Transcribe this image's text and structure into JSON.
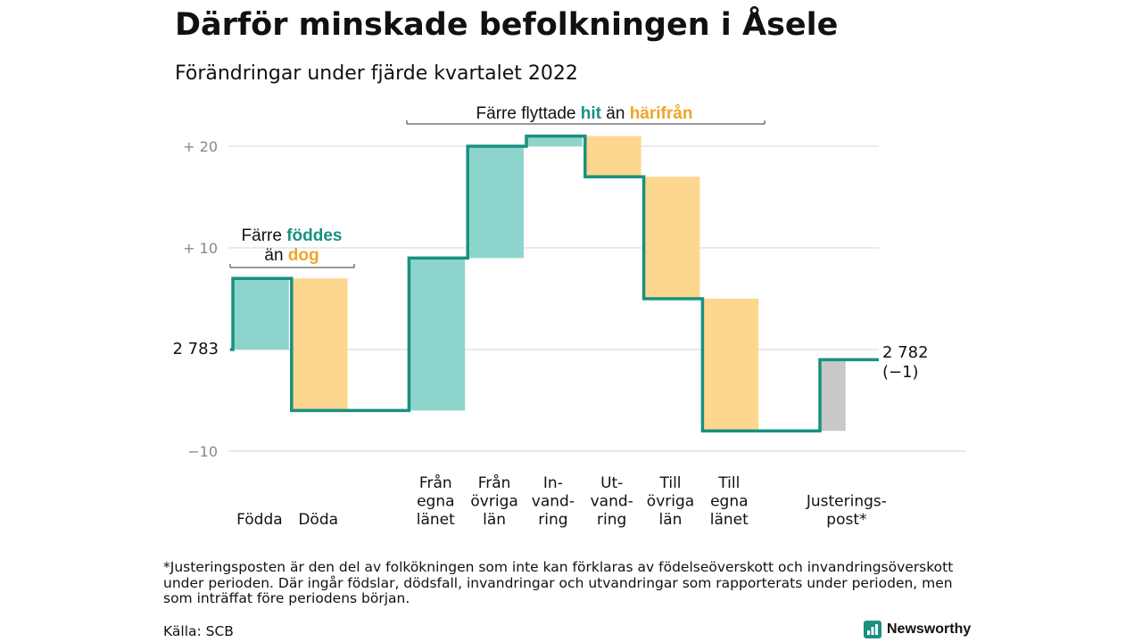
{
  "title": "Därför minskade befolkningen i Åsele",
  "subtitle": "Förändringar under fjärde kvartalet 2022",
  "footnote": "*Justeringsposten är den del av folkökningen som inte kan förklaras av födelseöverskott och invandringsöverskott under perioden. Där ingår födslar, dödsfall, invandringar och utvandringar som rapporterats under perioden, men som inträffat före periodens början.",
  "source": "Källa: SCB",
  "logo_text": "Newsworthy",
  "colors": {
    "positive": "#8dd5cc",
    "negative": "#fdd78f",
    "adjustment": "#c9c9c9",
    "line": "#1a9080",
    "hl_teal": "#1a9080",
    "hl_orange": "#eea628",
    "axis_text": "#888888",
    "grid": "#dddddd"
  },
  "annotations": {
    "births": {
      "line1_pre": "Färre ",
      "line1_hl": "föddes",
      "line2_pre": "än ",
      "line2_hl": "dog"
    },
    "migration": {
      "pre": "Färre flyttade ",
      "hl1": "hit",
      "mid": " än ",
      "hl2": "härifrån"
    }
  },
  "chart_data": {
    "type": "waterfall",
    "baseline": 2783,
    "start_label": "2 783",
    "end_label": "2 782",
    "end_change_label": "(−1)",
    "y_ticks": [
      {
        "value": 20,
        "label": "+ 20"
      },
      {
        "value": 10,
        "label": "+ 10"
      },
      {
        "value": 0,
        "label": ""
      },
      {
        "value": -10,
        "label": "−10"
      }
    ],
    "ylim": [
      -10,
      21
    ],
    "grid": true,
    "categories": [
      {
        "label": [
          "Födda"
        ],
        "change": 7,
        "kind": "positive"
      },
      {
        "label": [
          "Döda"
        ],
        "change": -13,
        "kind": "negative"
      },
      {
        "label": [],
        "change": 0,
        "kind": "none"
      },
      {
        "label": [
          "Från",
          "egna",
          "länet"
        ],
        "change": 15,
        "kind": "positive"
      },
      {
        "label": [
          "Från",
          "övriga",
          "län"
        ],
        "change": 11,
        "kind": "positive"
      },
      {
        "label": [
          "In-",
          "vand-",
          "ring"
        ],
        "change": 1,
        "kind": "positive"
      },
      {
        "label": [
          "Ut-",
          "vand-",
          "ring"
        ],
        "change": -4,
        "kind": "negative"
      },
      {
        "label": [
          "Till",
          "övriga",
          "län"
        ],
        "change": -12,
        "kind": "negative"
      },
      {
        "label": [
          "Till",
          "egna",
          "länet"
        ],
        "change": -13,
        "kind": "negative"
      },
      {
        "label": [],
        "change": 0,
        "kind": "none"
      },
      {
        "label": [
          "Justerings-",
          "post*"
        ],
        "change": 7,
        "kind": "adjustment"
      }
    ]
  }
}
